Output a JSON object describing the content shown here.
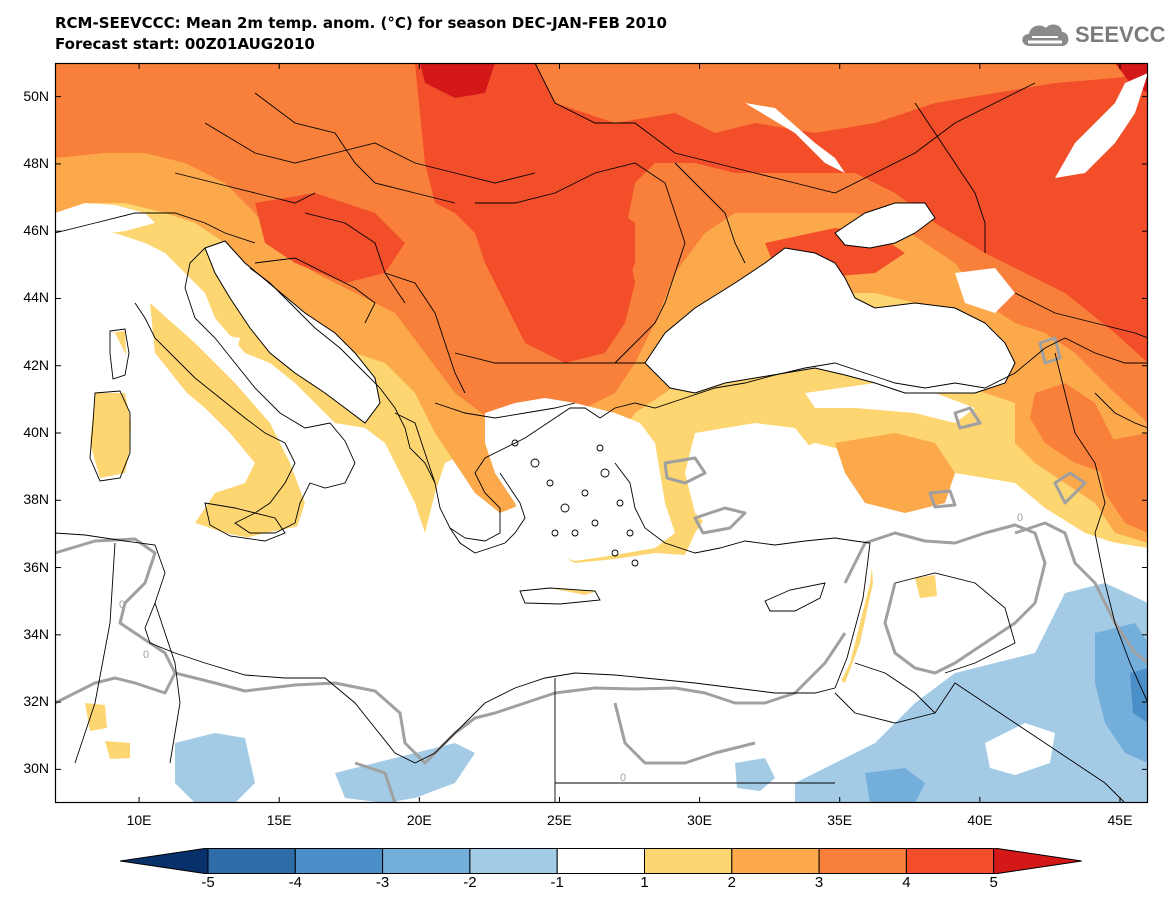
{
  "header": {
    "title": "RCM-SEEVCCC: Mean 2m temp. anom. (°C) for season DEC-JAN-FEB 2010",
    "subtitle": "Forecast start: 00Z01AUG2010",
    "logo_text": "SEEVCCC"
  },
  "map": {
    "lon_range": [
      7,
      46
    ],
    "lat_range": [
      29,
      51
    ],
    "lat_ticks": [
      {
        "value": 50,
        "label": "50N"
      },
      {
        "value": 48,
        "label": "48N"
      },
      {
        "value": 46,
        "label": "46N"
      },
      {
        "value": 44,
        "label": "44N"
      },
      {
        "value": 42,
        "label": "42N"
      },
      {
        "value": 40,
        "label": "40N"
      },
      {
        "value": 38,
        "label": "38N"
      },
      {
        "value": 36,
        "label": "36N"
      },
      {
        "value": 34,
        "label": "34N"
      },
      {
        "value": 32,
        "label": "32N"
      },
      {
        "value": 30,
        "label": "30N"
      }
    ],
    "lon_ticks": [
      {
        "value": 10,
        "label": "10E"
      },
      {
        "value": 15,
        "label": "15E"
      },
      {
        "value": 20,
        "label": "20E"
      },
      {
        "value": 25,
        "label": "25E"
      },
      {
        "value": 30,
        "label": "30E"
      },
      {
        "value": 35,
        "label": "35E"
      },
      {
        "value": 40,
        "label": "40E"
      },
      {
        "value": 45,
        "label": "45E"
      }
    ],
    "zero_contour_label": "0"
  },
  "colorbar": {
    "labels": [
      "-5",
      "-4",
      "-3",
      "-2",
      "-1",
      "1",
      "2",
      "3",
      "4",
      "5"
    ],
    "colors": [
      "#08306b",
      "#2e6da8",
      "#4a8fc8",
      "#74aedb",
      "#a4cbe6",
      "#ffffff",
      "#fdd672",
      "#fca94c",
      "#f8803a",
      "#f24e2a",
      "#d41818"
    ]
  }
}
